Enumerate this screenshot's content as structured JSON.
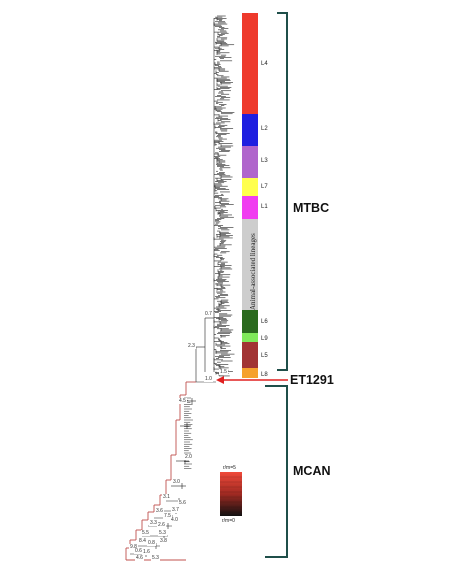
{
  "groups": {
    "mtbc": "MTBC",
    "et1291": "ET1291",
    "mcan": "MCAN"
  },
  "lineages": [
    {
      "label": "L4",
      "color": "#ee3a2c"
    },
    {
      "label": "L2",
      "color": "#1f1fe0"
    },
    {
      "label": "L3",
      "color": "#b065cc"
    },
    {
      "label": "L7",
      "color": "#ffff4d"
    },
    {
      "label": "L1",
      "color": "#f03cf0"
    },
    {
      "label": "Animal-associated lineages",
      "color": "#cdcdcd"
    },
    {
      "label": "L6",
      "color": "#2a6a1e"
    },
    {
      "label": "L9",
      "color": "#7fe95a"
    },
    {
      "label": "L5",
      "color": "#a23434"
    },
    {
      "label": "L8",
      "color": "#f5a12e"
    }
  ],
  "node_values": [
    "0.7",
    "2.3",
    "1.0",
    "1.5",
    "4.5",
    "2.0",
    "3.0",
    "3.1",
    "5.6",
    "3.7",
    "3.6",
    "7.5",
    "4.0",
    "3.3",
    "2.6",
    "5.3",
    "8.4",
    "9.8",
    "5.5",
    "0.8",
    "3.8",
    "0.6",
    "1.6",
    "4.6",
    "5.3"
  ],
  "legend": {
    "top_label": "r/m=5",
    "bottom_label": "r/m=0"
  },
  "colors": {
    "bracket": "#1f4f4a",
    "arrow": "#e02020",
    "branch_dark": "#222222",
    "branch_red": "#c0504d"
  }
}
